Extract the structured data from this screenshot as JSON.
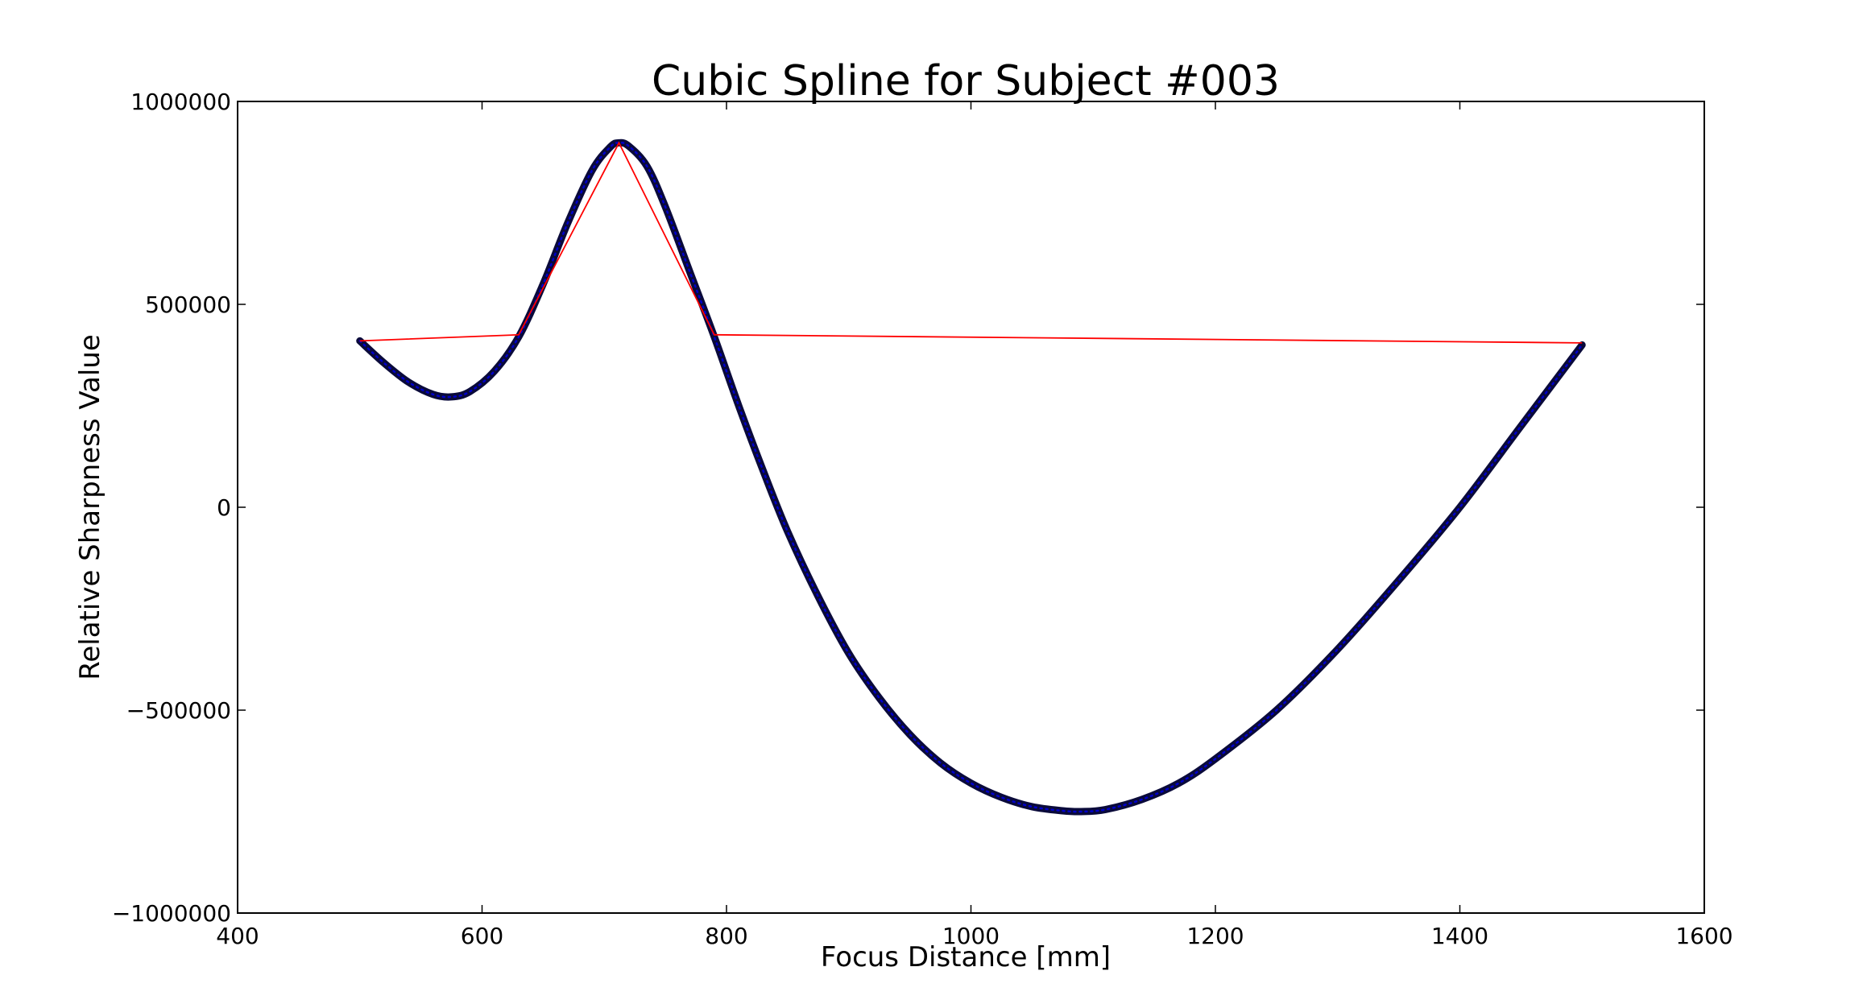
{
  "chart_data": {
    "type": "line",
    "title": "Cubic Spline for Subject #003",
    "xlabel": "Focus Distance [mm]",
    "ylabel": "Relative Sharpness Value",
    "xlim": [
      400,
      1600
    ],
    "ylim": [
      -1000000,
      1000000
    ],
    "xticks": [
      400,
      600,
      800,
      1000,
      1200,
      1400,
      1600
    ],
    "yticks": [
      -1000000,
      -500000,
      0,
      500000,
      1000000
    ],
    "xtick_labels": [
      "400",
      "600",
      "800",
      "1000",
      "1200",
      "1400",
      "1600"
    ],
    "ytick_labels": [
      "−1000000",
      "−500000",
      "0",
      "500000",
      "1000000"
    ],
    "grid": false,
    "series": [
      {
        "kind": "spline",
        "color": "#0a0a3a",
        "marker_color": "#0000cc",
        "x": [
          500,
          520,
          540,
          560,
          575,
          590,
          610,
          630,
          650,
          670,
          690,
          705,
          712,
          720,
          735,
          750,
          770,
          790,
          810,
          830,
          850,
          875,
          900,
          925,
          950,
          975,
          1000,
          1025,
          1050,
          1075,
          1090,
          1110,
          1140,
          1170,
          1200,
          1250,
          1300,
          1350,
          1400,
          1450,
          1500
        ],
        "y": [
          410000,
          355000,
          308000,
          278000,
          272000,
          285000,
          335000,
          420000,
          550000,
          700000,
          830000,
          888000,
          898000,
          890000,
          840000,
          740000,
          580000,
          420000,
          250000,
          90000,
          -60000,
          -220000,
          -360000,
          -470000,
          -560000,
          -630000,
          -680000,
          -715000,
          -738000,
          -748000,
          -750000,
          -745000,
          -720000,
          -680000,
          -620000,
          -500000,
          -350000,
          -180000,
          0,
          200000,
          400000
        ]
      },
      {
        "kind": "linear",
        "color": "#ff0000",
        "x": [
          500,
          630,
          712,
          790,
          1500
        ],
        "y": [
          410000,
          425000,
          898000,
          425000,
          405000
        ]
      }
    ]
  }
}
